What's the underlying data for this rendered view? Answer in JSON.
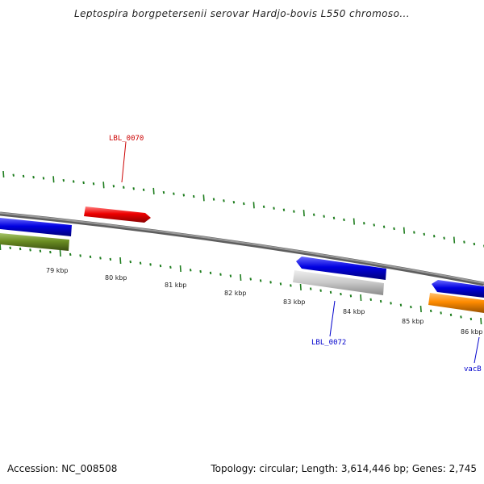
{
  "title": "Leptospira borgpetersenii serovar Hardjo-bovis L550 chromoso...",
  "footer": {
    "accession": "Accession: NC_008508",
    "topology": "Topology: circular; Length: 3,614,446 bp; Genes: 2,745"
  },
  "colors": {
    "backbone": "#8a8a8a",
    "tick": "#1e7d1e",
    "red_gene": "#ee0000",
    "blue_gene": "#0000dd",
    "olive_gene": "#6b8e23",
    "gray_gene": "#c8c8c8",
    "orange_gene": "#ff8c00",
    "label_red": "#cc0000",
    "label_blue": "#0000cc"
  },
  "scale": {
    "tick_labels": [
      "79 kbp",
      "80 kbp",
      "81 kbp",
      "82 kbp",
      "83 kbp",
      "84 kbp",
      "85 kbp",
      "86 kbp"
    ]
  },
  "genes": [
    {
      "label": "LBL_0070",
      "strand": "forward",
      "color": "red"
    },
    {
      "label": "LBL_0072",
      "strand": "reverse",
      "color": "gray"
    },
    {
      "label": "vacB",
      "strand": "reverse",
      "color": "orange"
    }
  ]
}
